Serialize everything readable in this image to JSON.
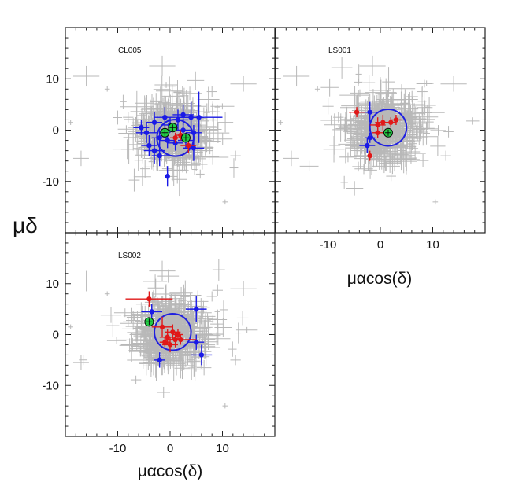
{
  "figure": {
    "ylabel": "μδ",
    "xlabel_right": "μαcos(δ)",
    "xlabel_bottom": "μαcos(δ)"
  },
  "chart_data": [
    {
      "type": "scatter",
      "panel_label": "CL005",
      "xlim": [
        -20,
        20
      ],
      "ylim": [
        -20,
        20
      ],
      "xticks": [],
      "yticks": [
        -10,
        0,
        10
      ],
      "ytick_labels": [
        "-10",
        "0",
        "10"
      ],
      "circle": {
        "center": [
          1,
          -1.5
        ],
        "radius": 3.5,
        "color": "#1f1fe0"
      },
      "series": [
        {
          "color": "#1a1ae6",
          "points": [
            {
              "x": -5.5,
              "y": 0.5,
              "ex": 1.5,
              "ey": 1.5
            },
            {
              "x": -4.5,
              "y": -0.5,
              "ex": 2,
              "ey": 2
            },
            {
              "x": -4,
              "y": -3,
              "ex": 1.5,
              "ey": 2
            },
            {
              "x": -3,
              "y": -4,
              "ex": 2,
              "ey": 2.5
            },
            {
              "x": -2,
              "y": -5,
              "ex": 1.5,
              "ey": 2
            },
            {
              "x": -3,
              "y": 1.5,
              "ex": 1.5,
              "ey": 2
            },
            {
              "x": -1,
              "y": 2.5,
              "ex": 2,
              "ey": 2
            },
            {
              "x": 0,
              "y": 1,
              "ex": 1.5,
              "ey": 1.5
            },
            {
              "x": 1.5,
              "y": 2,
              "ex": 2,
              "ey": 2
            },
            {
              "x": 2.5,
              "y": 3,
              "ex": 2,
              "ey": 2
            },
            {
              "x": 4,
              "y": 2.5,
              "ex": 2.5,
              "ey": 3
            },
            {
              "x": 5.5,
              "y": 2.5,
              "ex": 4.5,
              "ey": 5
            },
            {
              "x": 4.5,
              "y": -0.5,
              "ex": 1.5,
              "ey": 1.5
            },
            {
              "x": 4.5,
              "y": -3.5,
              "ex": 2,
              "ey": 2.5
            },
            {
              "x": 2.5,
              "y": 0,
              "ex": 1.5,
              "ey": 1.5
            },
            {
              "x": -0.5,
              "y": -2,
              "ex": 1.5,
              "ey": 1.5
            },
            {
              "x": 1,
              "y": -2.5,
              "ex": 1.5,
              "ey": 1.5
            },
            {
              "x": -2,
              "y": -1.5,
              "ex": 1.5,
              "ey": 1.5
            },
            {
              "x": 3,
              "y": -2,
              "ex": 1.5,
              "ey": 1.5
            },
            {
              "x": -0.5,
              "y": -9,
              "ex": 0,
              "ey": 2
            }
          ]
        },
        {
          "color": "#e01818",
          "points": [
            {
              "x": 2,
              "y": -1,
              "ex": 1,
              "ey": 1
            },
            {
              "x": 3.5,
              "y": -3,
              "ex": 1.5,
              "ey": 1.5
            },
            {
              "x": 1,
              "y": -1.5,
              "ex": 1,
              "ey": 1
            }
          ]
        },
        {
          "color": "#22cc44",
          "highlight": true,
          "points": [
            {
              "x": 0.5,
              "y": 0.5,
              "ex": 0.8,
              "ey": 0.8
            },
            {
              "x": -1,
              "y": -0.5,
              "ex": 0.8,
              "ey": 0.8
            },
            {
              "x": 3,
              "y": -1.5,
              "ex": 0.8,
              "ey": 0.8
            }
          ]
        }
      ]
    },
    {
      "type": "scatter",
      "panel_label": "LS001",
      "xlim": [
        -20,
        20
      ],
      "ylim": [
        -20,
        20
      ],
      "xticks": [
        -10,
        0,
        10
      ],
      "xtick_labels": [
        "-10",
        "0",
        "10"
      ],
      "yticks": [],
      "circle": {
        "center": [
          1.5,
          0.5
        ],
        "radius": 3.5,
        "color": "#1f1fe0"
      },
      "series": [
        {
          "color": "#1a1ae6",
          "points": [
            {
              "x": -2,
              "y": 3.5,
              "ex": 1.5,
              "ey": 2
            },
            {
              "x": -2.5,
              "y": -3,
              "ex": 1.5,
              "ey": 1.5
            },
            {
              "x": -2,
              "y": -1.5,
              "ex": 1,
              "ey": 1
            }
          ]
        },
        {
          "color": "#e01818",
          "points": [
            {
              "x": -4.5,
              "y": 3.5,
              "ex": 1.5,
              "ey": 1
            },
            {
              "x": -0.5,
              "y": 1,
              "ex": 1.5,
              "ey": 1.5
            },
            {
              "x": 0.5,
              "y": 1.5,
              "ex": 1.5,
              "ey": 1.5
            },
            {
              "x": 2,
              "y": 1.5,
              "ex": 1,
              "ey": 1
            },
            {
              "x": 3,
              "y": 2,
              "ex": 1,
              "ey": 1
            },
            {
              "x": -0.5,
              "y": -0.5,
              "ex": 1,
              "ey": 1
            },
            {
              "x": -2,
              "y": -5,
              "ex": 0.5,
              "ey": 1
            }
          ]
        },
        {
          "color": "#22cc44",
          "highlight": true,
          "points": [
            {
              "x": 1.5,
              "y": -0.5,
              "ex": 0.8,
              "ey": 0.8
            }
          ]
        }
      ]
    },
    {
      "type": "scatter",
      "panel_label": "LS002",
      "xlim": [
        -20,
        20
      ],
      "ylim": [
        -20,
        20
      ],
      "xticks": [
        -10,
        0,
        10
      ],
      "xtick_labels": [
        "-10",
        "0",
        "10"
      ],
      "yticks": [
        -10,
        0,
        10
      ],
      "ytick_labels": [
        "-10",
        "0",
        "10"
      ],
      "circle": {
        "center": [
          0.5,
          0.5
        ],
        "radius": 3.5,
        "color": "#1f1fe0"
      },
      "series": [
        {
          "color": "#1a1ae6",
          "points": [
            {
              "x": -3.5,
              "y": 4.5,
              "ex": 2,
              "ey": 1.5
            },
            {
              "x": 5,
              "y": 5,
              "ex": 2,
              "ey": 2.5
            },
            {
              "x": 6,
              "y": -4,
              "ex": 2,
              "ey": 2
            },
            {
              "x": 5,
              "y": -1.5,
              "ex": 1.5,
              "ey": 1.5
            },
            {
              "x": -2,
              "y": -5,
              "ex": 1,
              "ey": 1.5
            }
          ]
        },
        {
          "color": "#e01818",
          "points": [
            {
              "x": -4,
              "y": 7,
              "ex": 4.5,
              "ey": 1.5
            },
            {
              "x": -1.5,
              "y": 1.5,
              "ex": 2,
              "ey": 2
            },
            {
              "x": -0.5,
              "y": -0.5,
              "ex": 1.5,
              "ey": 1.5
            },
            {
              "x": 0.5,
              "y": 0.5,
              "ex": 1.5,
              "ey": 1.5
            },
            {
              "x": 1,
              "y": -1,
              "ex": 1.5,
              "ey": 1.5
            },
            {
              "x": 1.5,
              "y": 0,
              "ex": 1,
              "ey": 1
            },
            {
              "x": 0,
              "y": -2,
              "ex": 1.5,
              "ey": 1.5
            },
            {
              "x": 2,
              "y": -1,
              "ex": 3,
              "ey": 1
            },
            {
              "x": -1,
              "y": -1.5,
              "ex": 1,
              "ey": 1
            }
          ]
        },
        {
          "color": "#22cc44",
          "highlight": true,
          "points": [
            {
              "x": -4,
              "y": 2.5,
              "ex": 0.8,
              "ey": 0.8
            }
          ]
        }
      ]
    }
  ]
}
